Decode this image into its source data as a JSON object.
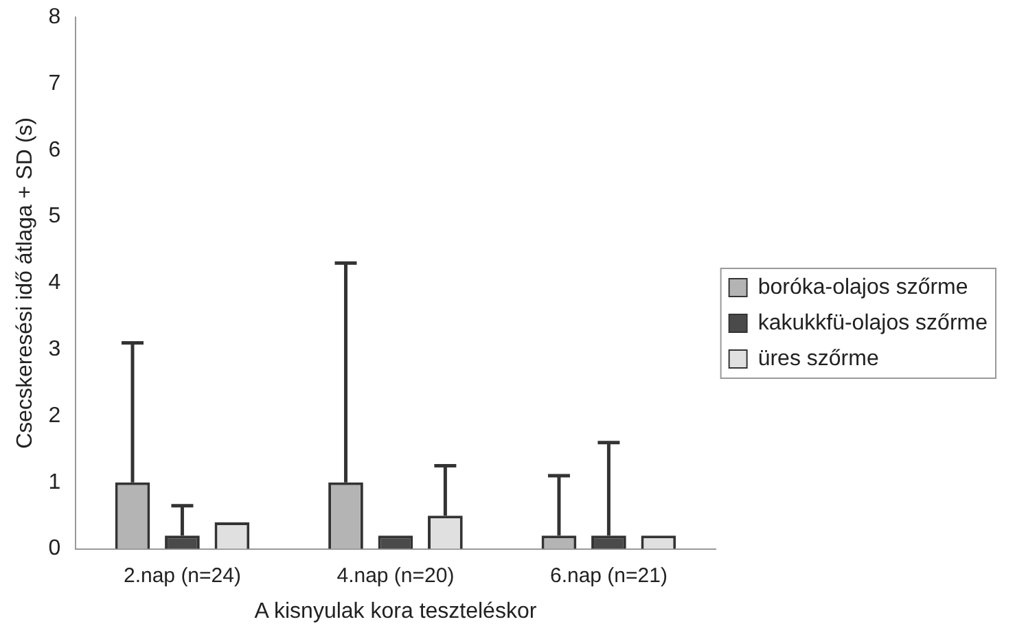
{
  "chart_data": {
    "type": "bar",
    "xlabel": "A kisnyulak kora teszteléskor",
    "ylabel": "Csecskeresési idő átlaga + SD (s)",
    "categories": [
      "2.nap (n=24)",
      "4.nap (n=20)",
      "6.nap (n=21)"
    ],
    "series": [
      {
        "name": "boróka-olajos szőrme",
        "color": "#b4b4b4",
        "values": [
          1.0,
          1.0,
          0.2
        ],
        "errors": [
          [
            1.0,
            3.1
          ],
          [
            1.0,
            4.3
          ],
          [
            0.2,
            1.1
          ]
        ]
      },
      {
        "name": "kakukkfü-olajos szőrme",
        "color": "#4a4a4a",
        "values": [
          0.2,
          0.2,
          0.2
        ],
        "errors": [
          [
            0.2,
            0.65
          ],
          null,
          [
            0.2,
            1.6
          ]
        ]
      },
      {
        "name": "üres szőrme",
        "color": "#e0e0e0",
        "values": [
          0.4,
          0.5,
          0.2
        ],
        "errors": [
          null,
          [
            0.5,
            1.25
          ],
          null
        ]
      }
    ],
    "ylim": [
      0,
      8
    ],
    "yticks": [
      0,
      1,
      2,
      3,
      4,
      5,
      6,
      7,
      8
    ],
    "grid": false,
    "legend": "right"
  }
}
